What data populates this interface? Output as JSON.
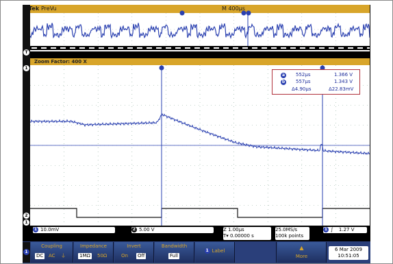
{
  "header": {
    "brand": "Tek",
    "mode": "PreVu",
    "timebase": "M 400µs"
  },
  "zoom": {
    "label": "Zoom Factor: 400 X"
  },
  "readout": {
    "cursor_a_time": "552µs",
    "cursor_a_volt": "1.366 V",
    "cursor_b_time": "557µs",
    "cursor_b_volt": "1.343 V",
    "delta_time": "Δ4.90µs",
    "delta_volt": "Δ22.83mV",
    "badge_a": "a",
    "badge_b": "b"
  },
  "status": {
    "ch1_scale": "10.0mV",
    "ch2_scale": "5.00 V",
    "ch1_badge": "1",
    "ch2_badge": "2",
    "zoom_time": "Z 1.00µs",
    "zoom_pos": "T▾ 0.00000 s",
    "sample_rate": "25.0MS/s",
    "record_length": "100k points",
    "trigger_badge": "1",
    "trigger_slope": "∫",
    "trigger_level": "1.27 V"
  },
  "menu": {
    "coupling": {
      "label": "Coupling",
      "options": [
        "DC",
        "AC",
        "⏚"
      ],
      "selected": "DC"
    },
    "impedance": {
      "label": "Impedance",
      "options": [
        "1MΩ",
        "50Ω"
      ],
      "selected": "1MΩ"
    },
    "invert": {
      "label": "Invert",
      "options": [
        "On",
        "Off"
      ],
      "selected": "Off"
    },
    "bandwidth": {
      "label": "Bandwidth",
      "value": "Full"
    },
    "label_btn": {
      "badge": "1",
      "label": "Label"
    },
    "more": {
      "label": "More"
    },
    "date": "6 Mar 2009",
    "time": "10:51:05"
  },
  "colors": {
    "ch1": "#2a40b0",
    "ch2": "#111111",
    "accent": "#d8a52a",
    "menu_bg": "#2a3f7a"
  }
}
